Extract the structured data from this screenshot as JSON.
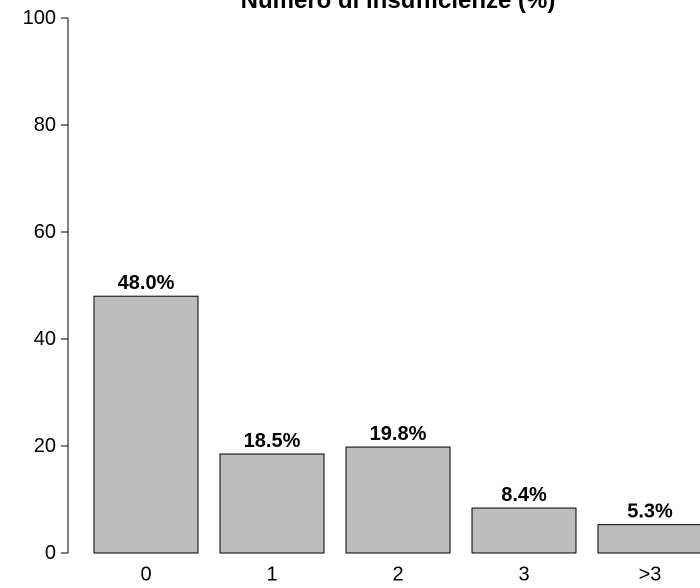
{
  "chart_data": {
    "type": "bar",
    "title": "Numero di insufficienze (%)",
    "categories": [
      "0",
      "1",
      "2",
      "3",
      ">3"
    ],
    "values": [
      48.0,
      18.5,
      19.8,
      8.4,
      5.3
    ],
    "data_labels": [
      "48.0%",
      "18.5%",
      "19.8%",
      "8.4%",
      "5.3%"
    ],
    "ylim": [
      0,
      100
    ],
    "yticks": [
      0,
      20,
      40,
      60,
      80,
      100
    ],
    "ytick_labels": [
      "0",
      "20",
      "40",
      "60",
      "80",
      "100"
    ],
    "xlabel": "",
    "ylabel": "",
    "grid": false,
    "bar_color": "#bebebe"
  }
}
